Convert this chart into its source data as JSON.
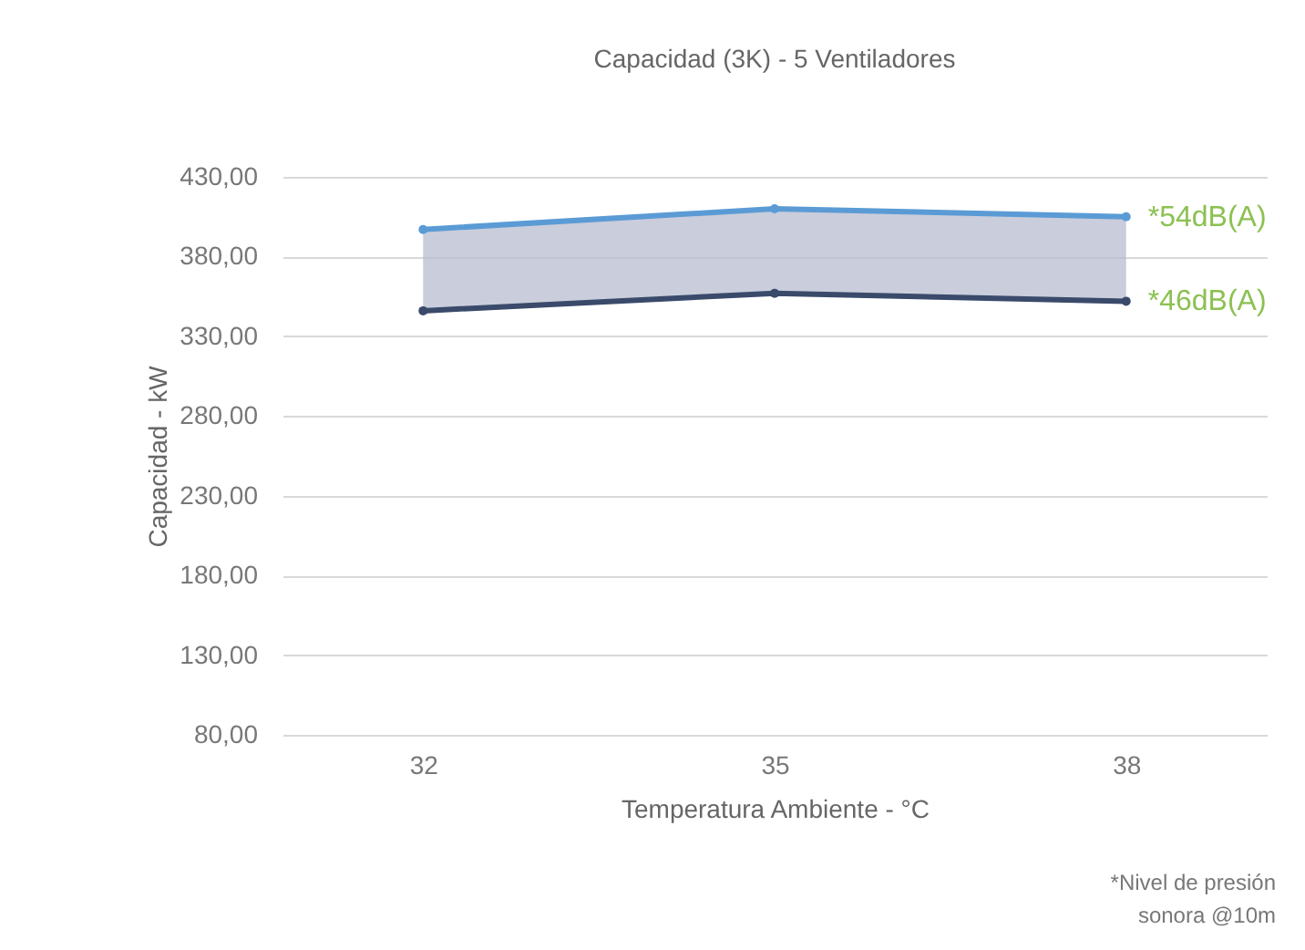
{
  "chart_data": {
    "type": "line",
    "title": "Capacidad (3K) - 5 Ventiladores",
    "xlabel": "Temperatura Ambiente - °C",
    "ylabel": "Capacidad - kW",
    "categories": [
      "32",
      "35",
      "38"
    ],
    "series": [
      {
        "name": "*54dB(A)",
        "color": "#5b9bd5",
        "values": [
          397,
          410,
          405
        ],
        "lower": [
          346,
          357,
          352
        ],
        "upper": [
          397,
          410,
          405
        ]
      },
      {
        "name": "*46dB(A)",
        "color": "#3a4a6b",
        "values": [
          346,
          357,
          352
        ]
      }
    ],
    "ylim": [
      80,
      430
    ],
    "yticks": [
      {
        "value": 80,
        "label": "80,00"
      },
      {
        "value": 130,
        "label": "130,00"
      },
      {
        "value": 180,
        "label": "180,00"
      },
      {
        "value": 230,
        "label": "230,00"
      },
      {
        "value": 280,
        "label": "280,00"
      },
      {
        "value": 330,
        "label": "330,00"
      },
      {
        "value": 380,
        "label": "380,00"
      },
      {
        "value": 430,
        "label": "430,00"
      }
    ],
    "grid": "y",
    "marker": "circle",
    "line_style": "solid",
    "legend": false,
    "annotations": [
      "*Nivel de presión sonora @10m"
    ]
  }
}
